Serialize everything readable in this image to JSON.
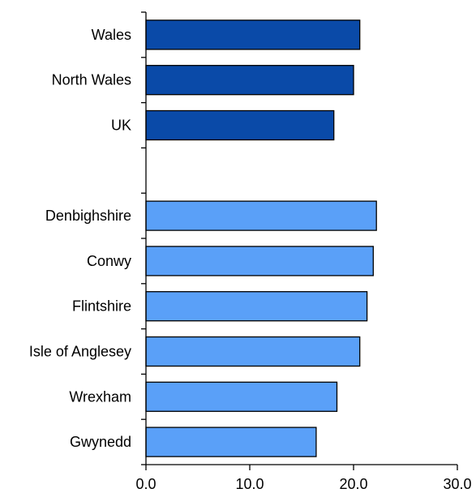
{
  "chart_data": {
    "type": "bar",
    "orientation": "horizontal",
    "title": "",
    "xlabel": "",
    "ylabel": "",
    "xlim": [
      0,
      30
    ],
    "x_ticks": [
      0,
      10,
      20,
      30
    ],
    "x_tick_labels": [
      "0.0",
      "10.0",
      "20.0",
      "30.0"
    ],
    "grid": false,
    "legend": "none",
    "categories": [
      "Wales",
      "North Wales",
      "UK",
      "",
      "Denbighshire",
      "Conwy",
      "Flintshire",
      "Isle of Anglesey",
      "Wrexham",
      "Gwynedd"
    ],
    "values": [
      20.6,
      20.0,
      18.1,
      null,
      22.2,
      21.9,
      21.3,
      20.6,
      18.4,
      16.4
    ],
    "bar_colors": [
      "#0a4aa8",
      "#0a4aa8",
      "#0a4aa8",
      null,
      "#5aa0f8",
      "#5aa0f8",
      "#5aa0f8",
      "#5aa0f8",
      "#5aa0f8",
      "#5aa0f8"
    ],
    "bar_outline": "#000000"
  }
}
